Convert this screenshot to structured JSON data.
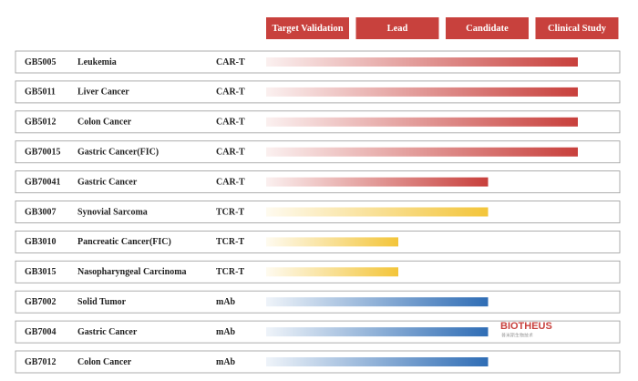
{
  "stages": [
    "Target Validation",
    "Lead",
    "Candidate",
    "Clinical Study"
  ],
  "rows": [
    {
      "code": "GB5005",
      "indication": "Leukemia",
      "modality": "CAR-T",
      "stage": 4,
      "color": "#c8403c"
    },
    {
      "code": "GB5011",
      "indication": "Liver Cancer",
      "modality": "CAR-T",
      "stage": 4,
      "color": "#c8403c"
    },
    {
      "code": "GB5012",
      "indication": "Colon Cancer",
      "modality": "CAR-T",
      "stage": 4,
      "color": "#c8403c"
    },
    {
      "code": "GB70015",
      "indication": "Gastric Cancer(FIC)",
      "modality": "CAR-T",
      "stage": 4,
      "color": "#c8403c"
    },
    {
      "code": "GB70041",
      "indication": "Gastric Cancer",
      "modality": "CAR-T",
      "stage": 3,
      "color": "#c8403c"
    },
    {
      "code": "GB3007",
      "indication": "Synovial Sarcoma",
      "modality": "TCR-T",
      "stage": 3,
      "color": "#f3c53a"
    },
    {
      "code": "GB3010",
      "indication": "Pancreatic Cancer(FIC)",
      "modality": "TCR-T",
      "stage": 2,
      "color": "#f3c53a"
    },
    {
      "code": "GB3015",
      "indication": "Nasopharyngeal Carcinoma",
      "modality": "TCR-T",
      "stage": 2,
      "color": "#f3c53a"
    },
    {
      "code": "GB7002",
      "indication": "Solid Tumor",
      "modality": "mAb",
      "stage": 3,
      "color": "#2f6db5"
    },
    {
      "code": "GB7004",
      "indication": "Gastric Cancer",
      "modality": "mAb",
      "stage": 3,
      "color": "#2f6db5"
    },
    {
      "code": "GB7012",
      "indication": "Colon Cancer",
      "modality": "mAb",
      "stage": 3,
      "color": "#2f6db5"
    }
  ],
  "logo": {
    "name": "BIOTHEUS",
    "subtitle": "普米斯生物技术"
  }
}
